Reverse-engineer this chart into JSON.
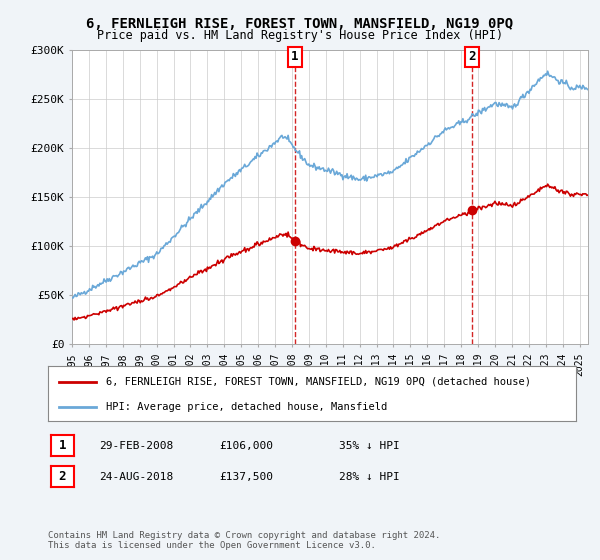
{
  "title": "6, FERNLEIGH RISE, FOREST TOWN, MANSFIELD, NG19 0PQ",
  "subtitle": "Price paid vs. HM Land Registry's House Price Index (HPI)",
  "legend_line1": "6, FERNLEIGH RISE, FOREST TOWN, MANSFIELD, NG19 0PQ (detached house)",
  "legend_line2": "HPI: Average price, detached house, Mansfield",
  "footnote": "Contains HM Land Registry data © Crown copyright and database right 2024.\nThis data is licensed under the Open Government Licence v3.0.",
  "annotation1_label": "1",
  "annotation1_date": "29-FEB-2008",
  "annotation1_price": "£106,000",
  "annotation1_hpi": "35% ↓ HPI",
  "annotation2_label": "2",
  "annotation2_date": "24-AUG-2018",
  "annotation2_price": "£137,500",
  "annotation2_hpi": "28% ↓ HPI",
  "hpi_color": "#6aa8d8",
  "price_color": "#cc0000",
  "marker1_x": 2008.17,
  "marker1_y": 106000,
  "marker2_x": 2018.65,
  "marker2_y": 137500,
  "ylim": [
    0,
    300000
  ],
  "xlim": [
    1995,
    2025.5
  ],
  "yticks": [
    0,
    50000,
    100000,
    150000,
    200000,
    250000,
    300000
  ],
  "ytick_labels": [
    "£0",
    "£50K",
    "£100K",
    "£150K",
    "£200K",
    "£250K",
    "£300K"
  ],
  "xticks": [
    1995,
    1996,
    1997,
    1998,
    1999,
    2000,
    2001,
    2002,
    2003,
    2004,
    2005,
    2006,
    2007,
    2008,
    2009,
    2010,
    2011,
    2012,
    2013,
    2014,
    2015,
    2016,
    2017,
    2018,
    2019,
    2020,
    2021,
    2022,
    2023,
    2024,
    2025
  ],
  "background_color": "#f0f4f8",
  "plot_bg_color": "#ffffff"
}
